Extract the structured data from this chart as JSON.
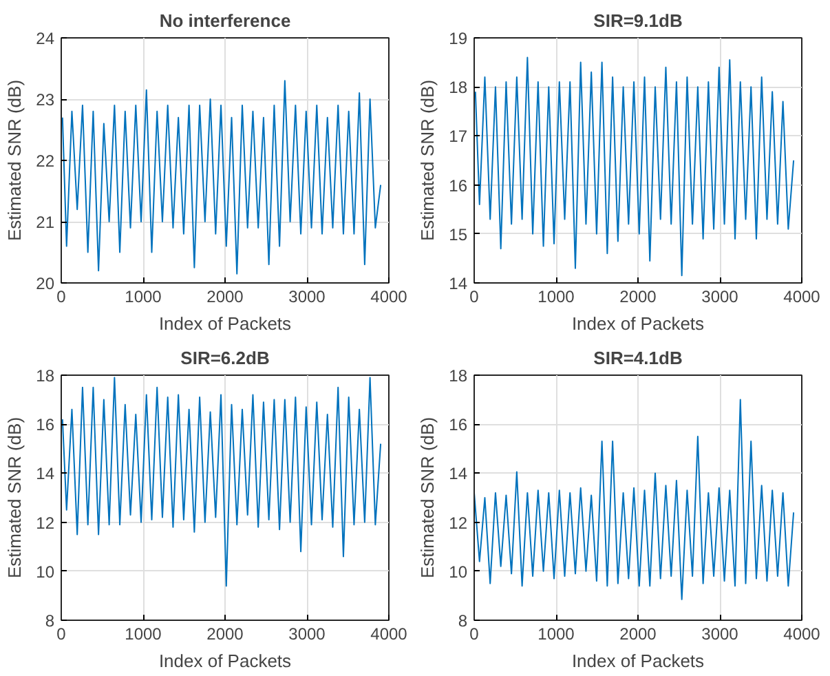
{
  "chart_data": [
    {
      "type": "line",
      "title": "No interference",
      "xlabel": "Index of Packets",
      "ylabel": "Estimated SNR (dB)",
      "xlim": [
        0,
        4000
      ],
      "xticks": [
        0,
        1000,
        2000,
        3000,
        4000
      ],
      "ylim": [
        20,
        24
      ],
      "yticks": [
        20,
        21,
        22,
        23,
        24
      ],
      "grid": true,
      "color": "#0072bd",
      "x": [
        15,
        65,
        130,
        195,
        260,
        325,
        390,
        455,
        520,
        585,
        650,
        715,
        780,
        845,
        910,
        975,
        1040,
        1105,
        1170,
        1235,
        1300,
        1365,
        1430,
        1495,
        1560,
        1625,
        1690,
        1755,
        1820,
        1885,
        1950,
        2015,
        2080,
        2145,
        2210,
        2275,
        2340,
        2405,
        2470,
        2535,
        2600,
        2665,
        2730,
        2795,
        2860,
        2925,
        2990,
        3055,
        3120,
        3185,
        3250,
        3315,
        3380,
        3445,
        3510,
        3575,
        3640,
        3705,
        3770,
        3835,
        3900
      ],
      "values": [
        22.7,
        20.6,
        22.8,
        21.2,
        22.9,
        20.5,
        22.8,
        20.2,
        22.6,
        21.0,
        22.9,
        20.5,
        22.8,
        20.9,
        22.9,
        21.0,
        23.15,
        20.5,
        22.8,
        21.0,
        22.9,
        20.9,
        22.7,
        20.8,
        22.9,
        20.25,
        22.9,
        21.0,
        23.0,
        20.8,
        22.9,
        20.6,
        22.7,
        20.15,
        22.9,
        20.9,
        22.8,
        20.9,
        22.7,
        20.3,
        22.9,
        20.6,
        23.3,
        21.0,
        22.9,
        20.8,
        22.8,
        20.9,
        22.9,
        20.8,
        22.7,
        20.9,
        22.9,
        20.8,
        22.8,
        20.8,
        23.1,
        20.3,
        23.0,
        20.9,
        21.6
      ]
    },
    {
      "type": "line",
      "title": "SIR=9.1dB",
      "xlabel": "Index of Packets",
      "ylabel": "Estimated SNR (dB)",
      "xlim": [
        0,
        4000
      ],
      "xticks": [
        0,
        1000,
        2000,
        3000,
        4000
      ],
      "ylim": [
        14,
        19
      ],
      "yticks": [
        14,
        15,
        16,
        17,
        18,
        19
      ],
      "grid": true,
      "color": "#0072bd",
      "x": [
        15,
        65,
        130,
        195,
        260,
        325,
        390,
        455,
        520,
        585,
        650,
        715,
        780,
        845,
        910,
        975,
        1040,
        1105,
        1170,
        1235,
        1300,
        1365,
        1430,
        1495,
        1560,
        1625,
        1690,
        1755,
        1820,
        1885,
        1950,
        2015,
        2080,
        2145,
        2210,
        2275,
        2340,
        2405,
        2470,
        2535,
        2600,
        2665,
        2730,
        2795,
        2860,
        2925,
        2990,
        3055,
        3120,
        3185,
        3250,
        3315,
        3380,
        3445,
        3510,
        3575,
        3640,
        3705,
        3770,
        3835,
        3900
      ],
      "values": [
        17.9,
        15.6,
        18.2,
        15.3,
        18.0,
        14.7,
        18.1,
        15.2,
        18.2,
        15.3,
        18.6,
        15.0,
        18.1,
        14.75,
        18.0,
        14.8,
        18.1,
        15.3,
        18.1,
        14.3,
        18.5,
        15.2,
        18.3,
        15.0,
        18.5,
        14.6,
        18.2,
        14.85,
        18.0,
        15.2,
        18.1,
        15.0,
        18.2,
        14.45,
        18.0,
        15.3,
        18.4,
        15.2,
        18.1,
        14.15,
        18.2,
        15.2,
        18.0,
        14.9,
        18.1,
        15.1,
        18.4,
        15.2,
        18.55,
        14.9,
        18.1,
        15.3,
        18.0,
        14.9,
        18.2,
        15.3,
        17.9,
        15.2,
        17.7,
        15.1,
        16.5
      ]
    },
    {
      "type": "line",
      "title": "SIR=6.2dB",
      "xlabel": "Index of Packets",
      "ylabel": "Estimated SNR (dB)",
      "xlim": [
        0,
        4000
      ],
      "xticks": [
        0,
        1000,
        2000,
        3000,
        4000
      ],
      "ylim": [
        8,
        18
      ],
      "yticks": [
        8,
        10,
        12,
        14,
        16,
        18
      ],
      "grid": true,
      "color": "#0072bd",
      "x": [
        15,
        65,
        130,
        195,
        260,
        325,
        390,
        455,
        520,
        585,
        650,
        715,
        780,
        845,
        910,
        975,
        1040,
        1105,
        1170,
        1235,
        1300,
        1365,
        1430,
        1495,
        1560,
        1625,
        1690,
        1755,
        1820,
        1885,
        1950,
        2015,
        2080,
        2145,
        2210,
        2275,
        2340,
        2405,
        2470,
        2535,
        2600,
        2665,
        2730,
        2795,
        2860,
        2925,
        2990,
        3055,
        3120,
        3185,
        3250,
        3315,
        3380,
        3445,
        3510,
        3575,
        3640,
        3705,
        3770,
        3835,
        3900
      ],
      "values": [
        16.2,
        12.5,
        16.6,
        11.5,
        17.5,
        11.9,
        17.5,
        11.5,
        17.0,
        11.9,
        17.9,
        11.9,
        16.8,
        12.3,
        16.4,
        12.0,
        17.2,
        12.1,
        17.5,
        12.2,
        17.1,
        11.8,
        17.2,
        12.1,
        16.6,
        11.6,
        17.1,
        12.0,
        16.5,
        12.2,
        17.2,
        9.4,
        16.8,
        11.9,
        16.6,
        12.3,
        17.2,
        11.8,
        16.9,
        12.1,
        17.0,
        11.7,
        17.0,
        12.0,
        17.1,
        10.8,
        16.7,
        11.9,
        16.9,
        12.1,
        16.4,
        11.8,
        17.5,
        10.6,
        17.1,
        11.9,
        16.6,
        12.0,
        17.9,
        11.9,
        15.2
      ]
    },
    {
      "type": "line",
      "title": "SIR=4.1dB",
      "xlabel": "Index of Packets",
      "ylabel": "Estimated SNR (dB)",
      "xlim": [
        0,
        4000
      ],
      "xticks": [
        0,
        1000,
        2000,
        3000,
        4000
      ],
      "ylim": [
        8,
        18
      ],
      "yticks": [
        8,
        10,
        12,
        14,
        16,
        18
      ],
      "grid": true,
      "color": "#0072bd",
      "x": [
        0,
        65,
        130,
        195,
        260,
        325,
        390,
        455,
        520,
        585,
        650,
        715,
        780,
        845,
        910,
        975,
        1040,
        1105,
        1170,
        1235,
        1300,
        1365,
        1430,
        1495,
        1560,
        1625,
        1690,
        1755,
        1820,
        1885,
        1950,
        2015,
        2080,
        2145,
        2210,
        2275,
        2340,
        2405,
        2470,
        2535,
        2600,
        2665,
        2730,
        2795,
        2860,
        2925,
        2990,
        3055,
        3120,
        3185,
        3250,
        3315,
        3380,
        3445,
        3510,
        3575,
        3640,
        3705,
        3770,
        3835,
        3900
      ],
      "values": [
        13.2,
        10.4,
        13.0,
        9.5,
        13.2,
        10.2,
        13.1,
        9.9,
        14.05,
        9.4,
        13.2,
        9.8,
        13.3,
        10.0,
        13.2,
        9.7,
        13.3,
        9.8,
        13.2,
        9.9,
        13.4,
        10.0,
        13.1,
        9.6,
        15.3,
        9.4,
        15.3,
        9.5,
        13.2,
        9.7,
        13.4,
        9.4,
        13.3,
        9.4,
        14.0,
        9.7,
        13.5,
        9.8,
        13.7,
        8.85,
        13.3,
        9.8,
        15.5,
        9.5,
        13.2,
        9.8,
        13.4,
        9.6,
        13.3,
        9.4,
        17.0,
        9.5,
        15.3,
        9.7,
        13.5,
        9.6,
        13.3,
        9.8,
        13.2,
        9.4,
        12.4
      ]
    }
  ]
}
